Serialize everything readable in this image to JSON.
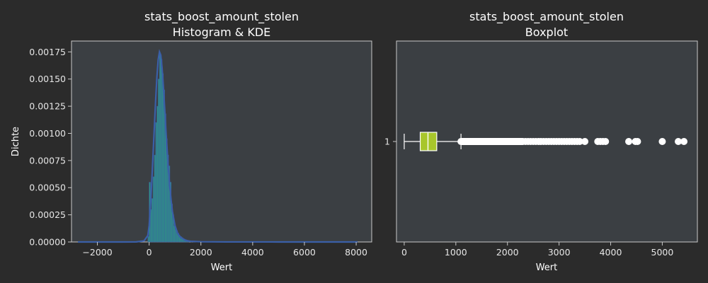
{
  "chart_data": [
    {
      "type": "histogram+kde",
      "title_line1": "stats_boost_amount_stolen",
      "title_line2": "Histogram & KDE",
      "xlabel": "Wert",
      "ylabel": "Dichte",
      "xlim": [
        -3000,
        8600
      ],
      "ylim": [
        0,
        0.00185
      ],
      "xticks": [
        -2000,
        0,
        2000,
        4000,
        6000,
        8000
      ],
      "yticks": [
        0,
        0.00025,
        0.0005,
        0.00075,
        0.001,
        0.00125,
        0.0015,
        0.00175
      ],
      "ytick_labels": [
        "0.00000",
        "0.00025",
        "0.00050",
        "0.00075",
        "0.00100",
        "0.00125",
        "0.00150",
        "0.00175"
      ],
      "grid": false,
      "colors": {
        "panel_bg": "#3b3f43",
        "hist_fill": "#2e9c84",
        "hist_edge": "#3a5fa8",
        "kde_line": "#3a5fa8"
      },
      "histogram": {
        "bin_width": 50,
        "bins_x": [
          -50,
          0,
          50,
          100,
          150,
          200,
          250,
          300,
          350,
          400,
          450,
          500,
          550,
          600,
          650,
          700,
          750,
          800,
          850,
          900,
          950,
          1000,
          1050,
          1100,
          1150,
          1200,
          1250,
          1300,
          1350,
          1400,
          1450,
          1500,
          1600,
          1700,
          1800,
          2000,
          2200,
          2500
        ],
        "density": [
          5e-05,
          0.00055,
          0.0003,
          0.0004,
          0.0006,
          0.0008,
          0.0011,
          0.00125,
          0.0015,
          0.00172,
          0.00168,
          0.00155,
          0.0014,
          0.00118,
          0.00095,
          0.0008,
          0.0007,
          0.00055,
          0.00035,
          0.00025,
          0.00015,
          0.00012,
          0.0001,
          8e-05,
          6e-05,
          5e-05,
          4e-05,
          3e-05,
          2.5e-05,
          2e-05,
          1.5e-05,
          1e-05,
          8e-06,
          6e-06,
          4e-06,
          3e-06,
          2e-06,
          1e-06
        ]
      },
      "kde": {
        "x": [
          -2750,
          -1000,
          -500,
          -200,
          -50,
          0,
          50,
          100,
          150,
          200,
          250,
          300,
          350,
          400,
          450,
          500,
          550,
          600,
          650,
          700,
          750,
          800,
          850,
          900,
          1000,
          1100,
          1200,
          1400,
          1600,
          2000,
          3000,
          5000,
          8050
        ],
        "y": [
          0,
          0,
          1e-06,
          1e-05,
          6e-05,
          0.00015,
          0.00032,
          0.00055,
          0.0008,
          0.00105,
          0.0013,
          0.00152,
          0.00168,
          0.00175,
          0.00172,
          0.0016,
          0.00143,
          0.00123,
          0.00102,
          0.00083,
          0.00065,
          0.0005,
          0.00038,
          0.00028,
          0.00015,
          8e-05,
          4.5e-05,
          1.5e-05,
          6e-06,
          2e-06,
          5e-07,
          2e-07,
          0
        ]
      }
    },
    {
      "type": "boxplot",
      "title_line1": "stats_boost_amount_stolen",
      "title_line2": "Boxplot",
      "xlabel": "Wert",
      "xlim": [
        -150,
        5680
      ],
      "xticks": [
        0,
        1000,
        2000,
        3000,
        4000,
        5000
      ],
      "category": "1",
      "colors": {
        "panel_bg": "#3b3f43",
        "box_fill": "#a8c62b",
        "line": "#ffffff",
        "outlier": "#ffffff"
      },
      "box": {
        "whisker_low": 0,
        "q1": 310,
        "median": 460,
        "q3": 630,
        "whisker_high": 1100
      },
      "outlier_cluster": [
        1100,
        2300
      ],
      "outliers": [
        2350,
        2400,
        2450,
        2500,
        2550,
        2600,
        2650,
        2700,
        2750,
        2800,
        2850,
        2900,
        2950,
        3000,
        3050,
        3100,
        3150,
        3200,
        3250,
        3300,
        3350,
        3400,
        3500,
        3750,
        3800,
        3850,
        3900,
        4350,
        4480,
        4520,
        5000,
        5310,
        5420
      ]
    }
  ]
}
